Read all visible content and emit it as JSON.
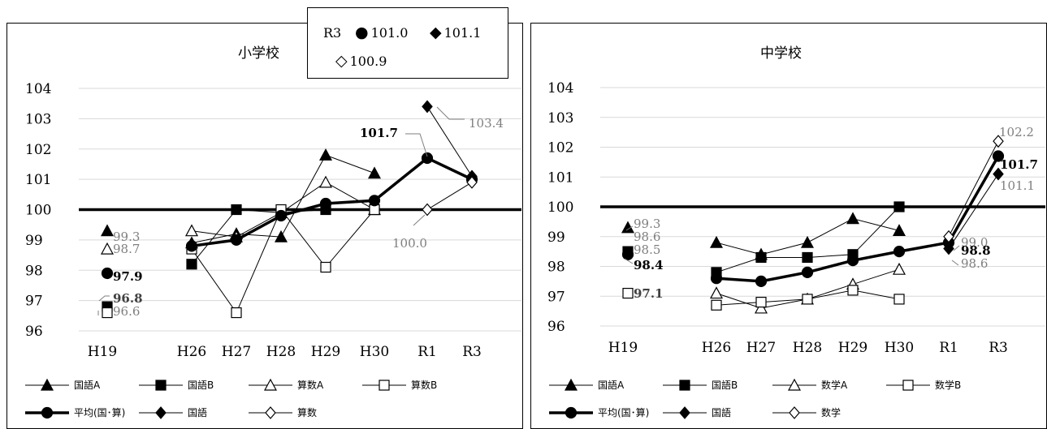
{
  "chart_data": [
    {
      "type": "line",
      "title": "小学校",
      "categories": [
        "H19",
        "H26",
        "H27",
        "H28",
        "H29",
        "H30",
        "R1",
        "R3"
      ],
      "ylim": [
        96,
        104
      ],
      "yticks": [
        "96",
        "97",
        "98",
        "99",
        "100",
        "101",
        "102",
        "103",
        "104"
      ],
      "reference_line": 100,
      "series": [
        {
          "name": "国語A",
          "marker": "filled-triangle",
          "bold": false,
          "values": [
            99.3,
            98.9,
            99.2,
            99.1,
            101.8,
            101.2,
            null,
            null
          ]
        },
        {
          "name": "国語B",
          "marker": "filled-square",
          "bold": false,
          "values": [
            96.8,
            98.2,
            100.0,
            99.9,
            100.0,
            100.0,
            null,
            null
          ]
        },
        {
          "name": "算数A",
          "marker": "open-triangle",
          "bold": false,
          "values": [
            98.7,
            99.3,
            99.1,
            99.9,
            100.9,
            100.0,
            null,
            null
          ]
        },
        {
          "name": "算数B",
          "marker": "open-square",
          "bold": false,
          "values": [
            96.6,
            98.7,
            96.6,
            100.0,
            98.1,
            100.0,
            null,
            null
          ]
        },
        {
          "name": "平均(国･算)",
          "marker": "filled-circle",
          "bold": true,
          "values": [
            97.9,
            98.8,
            99.0,
            99.8,
            100.2,
            100.3,
            101.7,
            101.0
          ]
        },
        {
          "name": "国語",
          "marker": "filled-diamond",
          "bold": false,
          "values": [
            null,
            null,
            null,
            null,
            null,
            null,
            103.4,
            101.1
          ]
        },
        {
          "name": "算数",
          "marker": "open-diamond",
          "bold": false,
          "values": [
            null,
            null,
            null,
            null,
            null,
            null,
            100.0,
            100.9
          ]
        }
      ],
      "annotations": [
        {
          "text": "99.3",
          "bold": false,
          "color": "#7f7f7f"
        },
        {
          "text": "98.7",
          "bold": false,
          "color": "#7f7f7f"
        },
        {
          "text": "97.9",
          "bold": true,
          "color": "#000000"
        },
        {
          "text": "96.8",
          "bold": true,
          "color": "#404040"
        },
        {
          "text": "96.6",
          "bold": false,
          "color": "#7f7f7f"
        },
        {
          "text": "101.7",
          "bold": true,
          "color": "#000000"
        },
        {
          "text": "103.4",
          "bold": false,
          "color": "#7f7f7f"
        },
        {
          "text": "100.0",
          "bold": false,
          "color": "#7f7f7f"
        }
      ]
    },
    {
      "type": "line",
      "title": "中学校",
      "categories": [
        "H19",
        "H26",
        "H27",
        "H28",
        "H29",
        "H30",
        "R1",
        "R3"
      ],
      "ylim": [
        96,
        104
      ],
      "yticks": [
        "96",
        "97",
        "98",
        "99",
        "100",
        "101",
        "102",
        "103",
        "104"
      ],
      "reference_line": 100,
      "series": [
        {
          "name": "国語A",
          "marker": "filled-triangle",
          "bold": false,
          "values": [
            99.3,
            98.8,
            98.4,
            98.8,
            99.6,
            99.2,
            null,
            null
          ]
        },
        {
          "name": "国語B",
          "marker": "filled-square",
          "bold": false,
          "values": [
            98.5,
            97.8,
            98.3,
            98.3,
            98.4,
            100.0,
            null,
            null
          ]
        },
        {
          "name": "数学A",
          "marker": "open-triangle",
          "bold": false,
          "values": [
            null,
            97.1,
            96.6,
            96.9,
            97.4,
            97.9,
            null,
            null
          ]
        },
        {
          "name": "数学B",
          "marker": "open-square",
          "bold": false,
          "values": [
            97.1,
            96.7,
            96.8,
            96.9,
            97.2,
            96.9,
            null,
            null
          ]
        },
        {
          "name": "平均(国･算)",
          "marker": "filled-circle",
          "bold": true,
          "values": [
            98.4,
            97.6,
            97.5,
            97.8,
            98.2,
            98.5,
            98.8,
            101.7
          ]
        },
        {
          "name": "国語",
          "marker": "filled-diamond",
          "bold": false,
          "values": [
            null,
            null,
            null,
            null,
            null,
            null,
            98.6,
            101.1
          ]
        },
        {
          "name": "数学",
          "marker": "open-diamond",
          "bold": false,
          "values": [
            null,
            null,
            null,
            null,
            null,
            null,
            99.0,
            102.2
          ]
        }
      ],
      "annotations": [
        {
          "text": "99.3",
          "bold": false,
          "color": "#7f7f7f"
        },
        {
          "text": "98.6",
          "bold": false,
          "color": "#7f7f7f"
        },
        {
          "text": "98.5",
          "bold": false,
          "color": "#7f7f7f"
        },
        {
          "text": "98.4",
          "bold": true,
          "color": "#000000"
        },
        {
          "text": "97.1",
          "bold": true,
          "color": "#404040"
        },
        {
          "text": "102.2",
          "bold": false,
          "color": "#7f7f7f"
        },
        {
          "text": "101.7",
          "bold": true,
          "color": "#000000"
        },
        {
          "text": "101.1",
          "bold": false,
          "color": "#7f7f7f"
        },
        {
          "text": "99.0",
          "bold": false,
          "color": "#7f7f7f"
        },
        {
          "text": "98.8",
          "bold": true,
          "color": "#000000"
        },
        {
          "text": "98.6",
          "bold": false,
          "color": "#7f7f7f"
        }
      ]
    }
  ],
  "callout": {
    "label": "R3",
    "circle_symbol": "●",
    "circle_value": "101.0",
    "diamond_symbol": "◆",
    "diamond_value": "101.1",
    "open_diamond_symbol": "◇",
    "open_diamond_value": "100.9"
  }
}
